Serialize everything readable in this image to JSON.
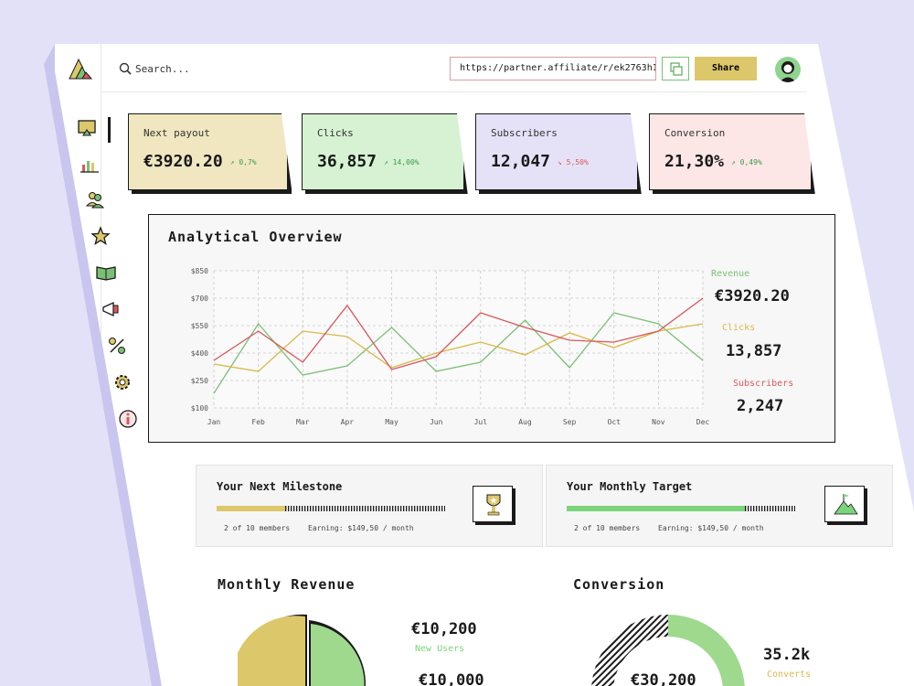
{
  "search": {
    "placeholder": "Search..."
  },
  "share": {
    "url": "https://partner.affiliate/r/ek2763h1m2",
    "button_label": "Share"
  },
  "sidebar": {
    "items": [
      {
        "name": "dashboard-icon"
      },
      {
        "name": "bar-chart-icon"
      },
      {
        "name": "users-icon"
      },
      {
        "name": "star-icon"
      },
      {
        "name": "book-icon"
      },
      {
        "name": "megaphone-icon"
      },
      {
        "name": "percent-icon"
      },
      {
        "name": "gear-icon"
      },
      {
        "name": "info-icon"
      }
    ]
  },
  "cards": [
    {
      "label": "Next payout",
      "value": "€3920.20",
      "delta": "0,7%",
      "trend": "up",
      "color": "#f0e7c0"
    },
    {
      "label": "Clicks",
      "value": "36,857",
      "delta": "14,00%",
      "trend": "up",
      "color": "#d6f2d2"
    },
    {
      "label": "Subscribers",
      "value": "12,047",
      "delta": "5,50%",
      "trend": "down",
      "color": "#e5e2f7"
    },
    {
      "label": "Conversion",
      "value": "21,30%",
      "delta": "0,49%",
      "trend": "up",
      "color": "#fde6e6"
    }
  ],
  "overview": {
    "title": "Analytical Overview",
    "legend": [
      {
        "label": "Revenue",
        "value": "€3920.20",
        "color": "#7bbf75"
      },
      {
        "label": "Clicks",
        "value": "13,857",
        "color": "#d9b84a"
      },
      {
        "label": "Subscribers",
        "value": "2,247",
        "color": "#d9575b"
      }
    ]
  },
  "chart_data": {
    "type": "line",
    "categories": [
      "Jan",
      "Feb",
      "Mar",
      "Apr",
      "May",
      "Jun",
      "Jul",
      "Aug",
      "Sep",
      "Oct",
      "Nov",
      "Dec"
    ],
    "ytick_labels": [
      "$100",
      "$250",
      "$400",
      "$550",
      "$700",
      "$850"
    ],
    "yticks": [
      100,
      250,
      400,
      550,
      700,
      850
    ],
    "ylim": [
      100,
      850
    ],
    "grid": true,
    "series": [
      {
        "name": "Revenue",
        "color": "#7bbf75",
        "values": [
          180,
          560,
          280,
          330,
          540,
          300,
          350,
          580,
          320,
          620,
          560,
          360
        ]
      },
      {
        "name": "Clicks",
        "color": "#d9b84a",
        "values": [
          340,
          300,
          520,
          490,
          320,
          400,
          460,
          390,
          510,
          430,
          520,
          560
        ]
      },
      {
        "name": "Subscribers",
        "color": "#d9575b",
        "values": [
          360,
          520,
          350,
          660,
          310,
          380,
          620,
          540,
          470,
          460,
          520,
          700
        ]
      }
    ]
  },
  "milestone": {
    "title": "Your Next Milestone",
    "members": "2 of 10 members",
    "earning": "Earning: $149,50 / month",
    "progress": 0.3
  },
  "target": {
    "title": "Your Monthly Target",
    "members": "2 of 10 members",
    "earning": "Earning: $149,50 / month",
    "progress": 0.78
  },
  "monthly_revenue": {
    "title": "Monthly Revenue",
    "value1": "€10,200",
    "label1": "New Users",
    "value2": "€10,000"
  },
  "conversion": {
    "title": "Conversion",
    "center_value": "€30,200",
    "value": "35.2k",
    "label": "Converts"
  }
}
